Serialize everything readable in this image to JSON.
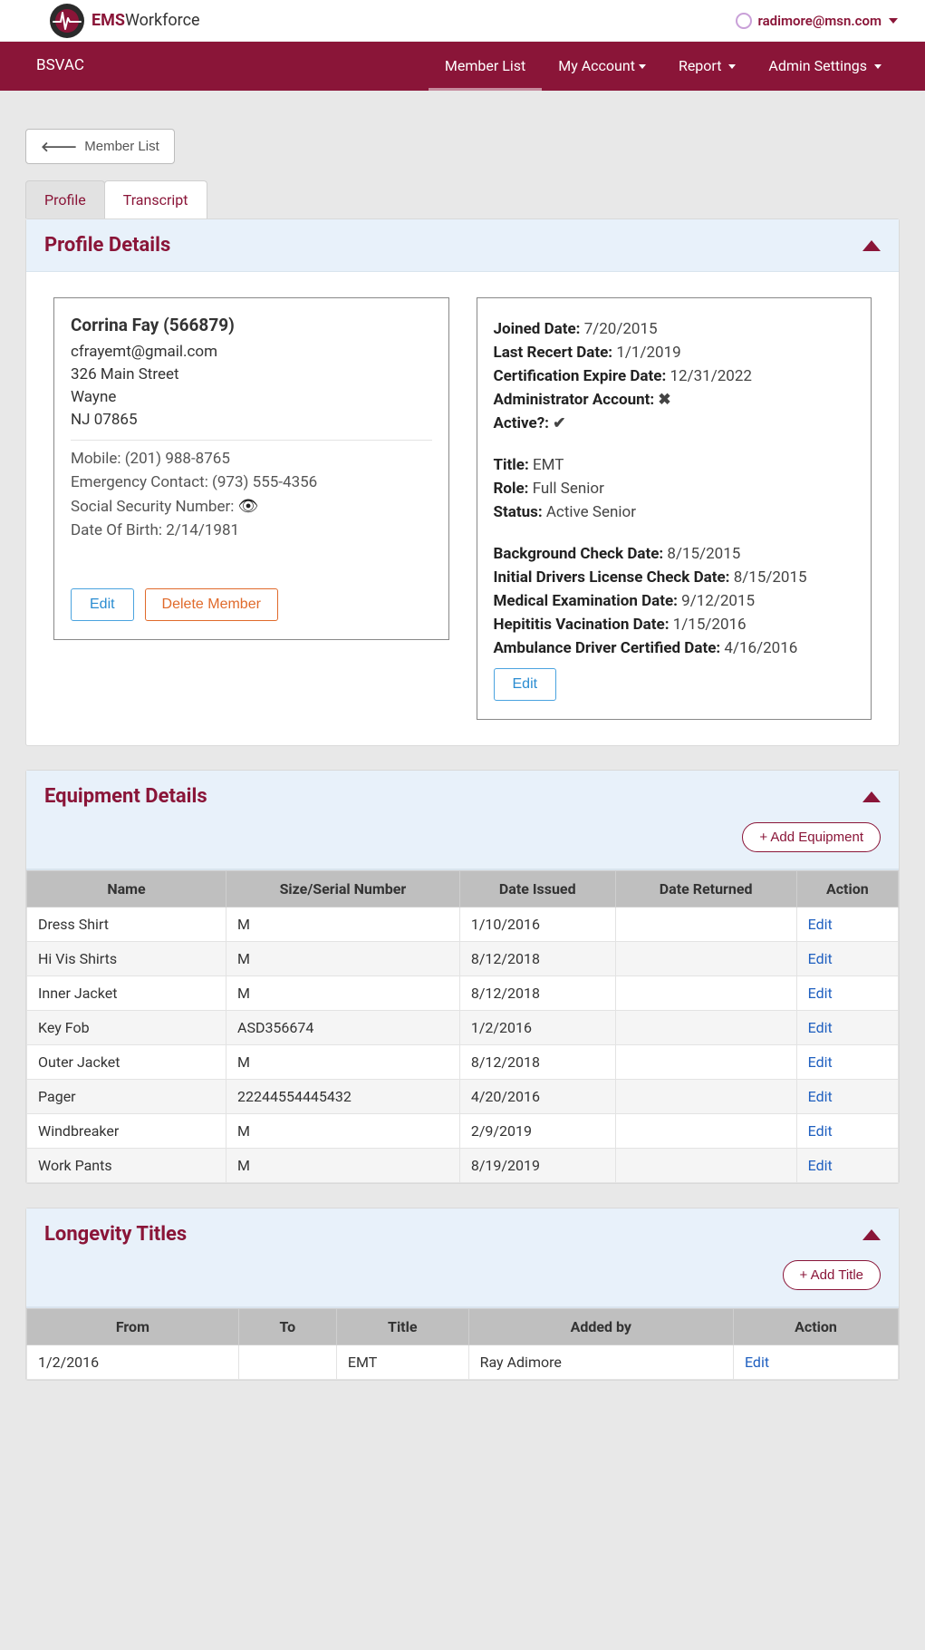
{
  "header": {
    "brand_ems": "EMS",
    "brand_workforce": "Workforce",
    "user_email": "radimore@msn.com"
  },
  "nav": {
    "org": "BSVAC",
    "links": [
      {
        "label": "Member List",
        "active": true,
        "caret": false
      },
      {
        "label": "My Account",
        "active": false,
        "caret": true
      },
      {
        "label": "Report",
        "active": false,
        "caret": true
      },
      {
        "label": "Admin Settings",
        "active": false,
        "caret": true
      }
    ]
  },
  "back_button": "Member List",
  "tabs": {
    "profile": "Profile",
    "transcript": "Transcript"
  },
  "profile_panel": {
    "title": "Profile Details",
    "left": {
      "name": "Corrina Fay (566879)",
      "email": "cfrayemt@gmail.com",
      "street": "326 Main Street",
      "city": "Wayne",
      "statezip": "NJ 07865",
      "mobile_label": "Mobile: ",
      "mobile": "(201) 988-8765",
      "emergency_label": "Emergency Contact: ",
      "emergency": "(973) 555-4356",
      "ssn_label": "Social Security Number: ",
      "dob_label": "Date Of Birth: ",
      "dob": "2/14/1981",
      "edit": "Edit",
      "delete": "Delete Member"
    },
    "right": {
      "joined_label": "Joined Date:",
      "joined": "7/20/2015",
      "recert_label": "Last Recert Date:",
      "recert": "1/1/2019",
      "certexp_label": "Certification Expire Date:",
      "certexp": "12/31/2022",
      "admin_label": "Administrator Account:",
      "active_label": "Active?:",
      "title_label": "Title:",
      "title": "EMT",
      "role_label": "Role:",
      "role": "Full Senior",
      "status_label": "Status:",
      "status": "Active Senior",
      "bg_label": "Background Check Date:",
      "bg": "8/15/2015",
      "dl_label": "Initial Drivers License Check Date:",
      "dl": "8/15/2015",
      "med_label": "Medical Examination Date:",
      "med": "9/12/2015",
      "hep_label": "Hepititis Vacination Date:",
      "hep": "1/15/2016",
      "amb_label": "Ambulance Driver Certified Date:",
      "amb": "4/16/2016",
      "edit": "Edit"
    }
  },
  "equipment_panel": {
    "title": "Equipment Details",
    "add": "+ Add Equipment",
    "columns": [
      "Name",
      "Size/Serial Number",
      "Date Issued",
      "Date Returned",
      "Action"
    ],
    "rows": [
      {
        "name": "Dress Shirt",
        "size": "M",
        "issued": "1/10/2016",
        "returned": "",
        "action": "Edit"
      },
      {
        "name": "Hi Vis Shirts",
        "size": "M",
        "issued": "8/12/2018",
        "returned": "",
        "action": "Edit"
      },
      {
        "name": "Inner Jacket",
        "size": "M",
        "issued": "8/12/2018",
        "returned": "",
        "action": "Edit"
      },
      {
        "name": "Key Fob",
        "size": "ASD356674",
        "issued": "1/2/2016",
        "returned": "",
        "action": "Edit"
      },
      {
        "name": "Outer Jacket",
        "size": "M",
        "issued": "8/12/2018",
        "returned": "",
        "action": "Edit"
      },
      {
        "name": "Pager",
        "size": "22244554445432",
        "issued": "4/20/2016",
        "returned": "",
        "action": "Edit"
      },
      {
        "name": "Windbreaker",
        "size": "M",
        "issued": "2/9/2019",
        "returned": "",
        "action": "Edit"
      },
      {
        "name": "Work Pants",
        "size": "M",
        "issued": "8/19/2019",
        "returned": "",
        "action": "Edit"
      }
    ]
  },
  "longevity_panel": {
    "title": "Longevity Titles",
    "add": "+ Add Title",
    "columns": [
      "From",
      "To",
      "Title",
      "Added by",
      "Action"
    ],
    "rows": [
      {
        "from": "1/2/2016",
        "to": "",
        "title": "EMT",
        "added_by": "Ray Adimore",
        "action": "Edit"
      }
    ]
  }
}
